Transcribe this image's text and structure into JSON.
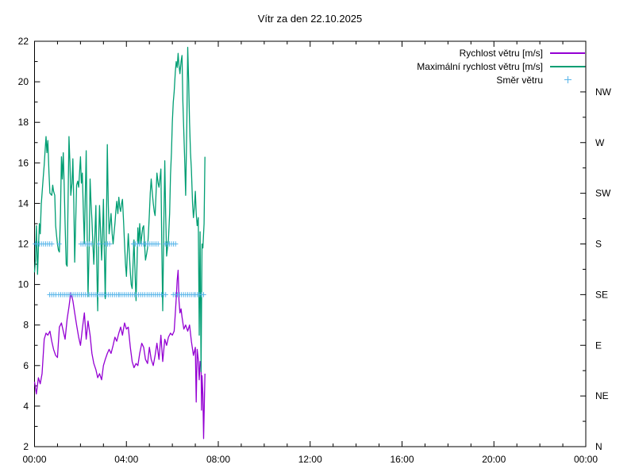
{
  "chart_data": {
    "type": "line",
    "title": "Vítr za den 22.10.2025",
    "background": "#ffffff",
    "axis_color": "#000000",
    "legend_position": "inside-top-right",
    "x_axis": {
      "range_h": [
        0,
        24
      ],
      "label_hours": [
        0,
        4,
        8,
        12,
        16,
        20,
        24
      ],
      "labels": [
        "00:00",
        "04:00",
        "08:00",
        "12:00",
        "16:00",
        "20:00",
        "00:00"
      ],
      "minor_step_h": 1
    },
    "y_axis": {
      "range": [
        2,
        22
      ],
      "major_ticks": [
        2,
        4,
        6,
        8,
        10,
        12,
        14,
        16,
        18,
        20,
        22
      ],
      "labels": [
        "2",
        "4",
        "6",
        "8",
        "10",
        "12",
        "14",
        "16",
        "18",
        "20",
        "22"
      ],
      "minor_step": 1
    },
    "y2_axis": {
      "tick_values": [
        2,
        4.5,
        7,
        9.5,
        12,
        14.5,
        17,
        19.5
      ],
      "labels": [
        "N",
        "NE",
        "E",
        "SE",
        "S",
        "SW",
        "W",
        "NW"
      ],
      "minor_step": 1.25
    },
    "series": [
      {
        "name": "Rychlost větru [m/s]",
        "type": "line",
        "color": "#9400d3",
        "points": [
          [
            0.0,
            5.2
          ],
          [
            0.08,
            4.6
          ],
          [
            0.17,
            5.4
          ],
          [
            0.25,
            5.1
          ],
          [
            0.33,
            5.6
          ],
          [
            0.42,
            7.3
          ],
          [
            0.5,
            7.6
          ],
          [
            0.58,
            7.5
          ],
          [
            0.67,
            7.7
          ],
          [
            0.75,
            7.2
          ],
          [
            0.83,
            6.8
          ],
          [
            0.92,
            6.5
          ],
          [
            1.0,
            6.4
          ],
          [
            1.08,
            7.9
          ],
          [
            1.17,
            8.1
          ],
          [
            1.25,
            7.7
          ],
          [
            1.33,
            7.3
          ],
          [
            1.42,
            8.3
          ],
          [
            1.5,
            8.9
          ],
          [
            1.58,
            9.6
          ],
          [
            1.67,
            9.2
          ],
          [
            1.75,
            8.6
          ],
          [
            1.83,
            8.0
          ],
          [
            1.92,
            7.4
          ],
          [
            2.0,
            7.0
          ],
          [
            2.08,
            7.8
          ],
          [
            2.17,
            8.6
          ],
          [
            2.25,
            7.3
          ],
          [
            2.33,
            8.2
          ],
          [
            2.42,
            7.5
          ],
          [
            2.5,
            6.6
          ],
          [
            2.58,
            6.1
          ],
          [
            2.67,
            5.8
          ],
          [
            2.75,
            5.4
          ],
          [
            2.83,
            5.6
          ],
          [
            2.92,
            5.3
          ],
          [
            3.0,
            6.0
          ],
          [
            3.08,
            6.3
          ],
          [
            3.17,
            6.6
          ],
          [
            3.25,
            6.8
          ],
          [
            3.33,
            6.6
          ],
          [
            3.42,
            7.0
          ],
          [
            3.5,
            7.4
          ],
          [
            3.58,
            7.2
          ],
          [
            3.67,
            7.6
          ],
          [
            3.75,
            7.9
          ],
          [
            3.83,
            7.5
          ],
          [
            3.92,
            8.1
          ],
          [
            4.0,
            7.8
          ],
          [
            4.08,
            7.9
          ],
          [
            4.17,
            6.9
          ],
          [
            4.25,
            6.2
          ],
          [
            4.33,
            5.9
          ],
          [
            4.42,
            6.1
          ],
          [
            4.5,
            6.0
          ],
          [
            4.58,
            6.6
          ],
          [
            4.67,
            7.1
          ],
          [
            4.75,
            6.9
          ],
          [
            4.83,
            6.3
          ],
          [
            4.92,
            6.1
          ],
          [
            5.0,
            6.9
          ],
          [
            5.08,
            6.3
          ],
          [
            5.17,
            6.0
          ],
          [
            5.25,
            6.5
          ],
          [
            5.33,
            7.1
          ],
          [
            5.42,
            6.3
          ],
          [
            5.5,
            7.5
          ],
          [
            5.58,
            6.2
          ],
          [
            5.67,
            7.3
          ],
          [
            5.75,
            7.0
          ],
          [
            5.83,
            7.4
          ],
          [
            5.92,
            7.6
          ],
          [
            6.0,
            7.5
          ],
          [
            6.08,
            7.7
          ],
          [
            6.13,
            8.6
          ],
          [
            6.17,
            9.3
          ],
          [
            6.21,
            10.2
          ],
          [
            6.25,
            10.7
          ],
          [
            6.29,
            9.2
          ],
          [
            6.33,
            8.6
          ],
          [
            6.38,
            8.8
          ],
          [
            6.42,
            8.4
          ],
          [
            6.5,
            7.8
          ],
          [
            6.58,
            8.0
          ],
          [
            6.67,
            7.7
          ],
          [
            6.75,
            8.0
          ],
          [
            6.83,
            7.2
          ],
          [
            6.92,
            6.5
          ],
          [
            7.0,
            6.9
          ],
          [
            7.04,
            4.2
          ],
          [
            7.08,
            6.8
          ],
          [
            7.13,
            6.3
          ],
          [
            7.17,
            5.3
          ],
          [
            7.21,
            6.2
          ],
          [
            7.25,
            6.0
          ],
          [
            7.27,
            3.8
          ],
          [
            7.29,
            5.5
          ],
          [
            7.33,
            4.6
          ],
          [
            7.36,
            2.4
          ],
          [
            7.42,
            5.6
          ]
        ]
      },
      {
        "name": "Maximální rychlost větru [m/s]",
        "type": "line",
        "color": "#009e73",
        "points": [
          [
            0.0,
            10.6
          ],
          [
            0.04,
            11.2
          ],
          [
            0.08,
            12.9
          ],
          [
            0.13,
            10.5
          ],
          [
            0.17,
            11.8
          ],
          [
            0.21,
            13.0
          ],
          [
            0.25,
            12.5
          ],
          [
            0.29,
            13.9
          ],
          [
            0.33,
            14.5
          ],
          [
            0.38,
            15.3
          ],
          [
            0.42,
            15.9
          ],
          [
            0.46,
            16.6
          ],
          [
            0.5,
            17.3
          ],
          [
            0.54,
            16.5
          ],
          [
            0.58,
            17.1
          ],
          [
            0.63,
            15.5
          ],
          [
            0.67,
            14.5
          ],
          [
            0.75,
            14.4
          ],
          [
            0.79,
            14.9
          ],
          [
            0.83,
            14.6
          ],
          [
            0.88,
            14.4
          ],
          [
            0.92,
            12.9
          ],
          [
            0.96,
            12.4
          ],
          [
            1.0,
            12.0
          ],
          [
            1.04,
            11.7
          ],
          [
            1.08,
            11.6
          ],
          [
            1.13,
            13.5
          ],
          [
            1.17,
            16.3
          ],
          [
            1.21,
            15.2
          ],
          [
            1.25,
            16.5
          ],
          [
            1.29,
            15.0
          ],
          [
            1.33,
            13.0
          ],
          [
            1.38,
            11.0
          ],
          [
            1.42,
            10.9
          ],
          [
            1.46,
            14.0
          ],
          [
            1.5,
            17.3
          ],
          [
            1.54,
            16.0
          ],
          [
            1.58,
            14.4
          ],
          [
            1.63,
            15.0
          ],
          [
            1.67,
            16.2
          ],
          [
            1.71,
            14.0
          ],
          [
            1.75,
            11.1
          ],
          [
            1.79,
            13.0
          ],
          [
            1.83,
            14.9
          ],
          [
            1.88,
            15.1
          ],
          [
            1.92,
            14.8
          ],
          [
            1.96,
            15.5
          ],
          [
            2.0,
            16.3
          ],
          [
            2.04,
            15.0
          ],
          [
            2.08,
            15.5
          ],
          [
            2.13,
            13.5
          ],
          [
            2.17,
            12.0
          ],
          [
            2.21,
            14.5
          ],
          [
            2.25,
            16.6
          ],
          [
            2.29,
            12.5
          ],
          [
            2.33,
            9.4
          ],
          [
            2.38,
            12.0
          ],
          [
            2.42,
            15.2
          ],
          [
            2.46,
            14.0
          ],
          [
            2.5,
            13.2
          ],
          [
            2.54,
            12.0
          ],
          [
            2.58,
            11.0
          ],
          [
            2.63,
            12.5
          ],
          [
            2.67,
            13.9
          ],
          [
            2.71,
            11.0
          ],
          [
            2.75,
            8.7
          ],
          [
            2.79,
            12.0
          ],
          [
            2.83,
            13.9
          ],
          [
            2.88,
            12.5
          ],
          [
            2.92,
            11.2
          ],
          [
            2.96,
            12.5
          ],
          [
            3.0,
            14.2
          ],
          [
            3.04,
            11.5
          ],
          [
            3.08,
            9.3
          ],
          [
            3.13,
            13.0
          ],
          [
            3.17,
            16.9
          ],
          [
            3.21,
            14.0
          ],
          [
            3.25,
            12.5
          ],
          [
            3.29,
            13.0
          ],
          [
            3.33,
            13.5
          ],
          [
            3.38,
            12.5
          ],
          [
            3.42,
            12.0
          ],
          [
            3.46,
            12.5
          ],
          [
            3.5,
            13.0
          ],
          [
            3.54,
            13.6
          ],
          [
            3.58,
            14.1
          ],
          [
            3.63,
            13.5
          ],
          [
            3.67,
            14.3
          ],
          [
            3.71,
            13.8
          ],
          [
            3.75,
            13.6
          ],
          [
            3.79,
            14.0
          ],
          [
            3.83,
            14.2
          ],
          [
            3.88,
            13.0
          ],
          [
            3.92,
            12.0
          ],
          [
            3.96,
            11.0
          ],
          [
            4.0,
            10.4
          ],
          [
            4.04,
            11.5
          ],
          [
            4.08,
            12.5
          ],
          [
            4.13,
            11.5
          ],
          [
            4.17,
            10.6
          ],
          [
            4.21,
            10.0
          ],
          [
            4.25,
            9.8
          ],
          [
            4.29,
            11.0
          ],
          [
            4.33,
            12.2
          ],
          [
            4.38,
            10.5
          ],
          [
            4.42,
            9.2
          ],
          [
            4.46,
            11.0
          ],
          [
            4.5,
            12.8
          ],
          [
            4.54,
            12.0
          ],
          [
            4.58,
            13.0
          ],
          [
            4.63,
            12.0
          ],
          [
            4.67,
            12.4
          ],
          [
            4.71,
            12.8
          ],
          [
            4.75,
            12.9
          ],
          [
            4.79,
            12.0
          ],
          [
            4.83,
            11.2
          ],
          [
            4.88,
            11.5
          ],
          [
            4.92,
            11.8
          ],
          [
            4.96,
            12.5
          ],
          [
            5.0,
            13.5
          ],
          [
            5.04,
            14.5
          ],
          [
            5.08,
            15.2
          ],
          [
            5.13,
            14.5
          ],
          [
            5.17,
            14.0
          ],
          [
            5.21,
            13.6
          ],
          [
            5.25,
            13.4
          ],
          [
            5.29,
            14.5
          ],
          [
            5.33,
            15.5
          ],
          [
            5.38,
            15.0
          ],
          [
            5.42,
            14.8
          ],
          [
            5.46,
            15.2
          ],
          [
            5.5,
            15.7
          ],
          [
            5.54,
            12.0
          ],
          [
            5.58,
            8.7
          ],
          [
            5.63,
            13.0
          ],
          [
            5.67,
            16.1
          ],
          [
            5.71,
            13.5
          ],
          [
            5.75,
            11.4
          ],
          [
            5.79,
            11.8
          ],
          [
            5.83,
            12.2
          ],
          [
            5.88,
            13.5
          ],
          [
            5.92,
            15.4
          ],
          [
            5.96,
            16.5
          ],
          [
            6.0,
            18.0
          ],
          [
            6.04,
            19.0
          ],
          [
            6.08,
            19.5
          ],
          [
            6.13,
            20.5
          ],
          [
            6.17,
            21.0
          ],
          [
            6.21,
            20.7
          ],
          [
            6.25,
            21.4
          ],
          [
            6.29,
            20.8
          ],
          [
            6.33,
            20.4
          ],
          [
            6.38,
            21.0
          ],
          [
            6.42,
            21.3
          ],
          [
            6.46,
            19.0
          ],
          [
            6.5,
            17.5
          ],
          [
            6.54,
            16.0
          ],
          [
            6.58,
            14.4
          ],
          [
            6.63,
            18.0
          ],
          [
            6.67,
            21.7
          ],
          [
            6.71,
            20.0
          ],
          [
            6.75,
            18.0
          ],
          [
            6.79,
            16.5
          ],
          [
            6.83,
            15.7
          ],
          [
            6.88,
            14.0
          ],
          [
            6.92,
            13.3
          ],
          [
            6.96,
            13.8
          ],
          [
            7.0,
            14.6
          ],
          [
            7.04,
            13.5
          ],
          [
            7.08,
            12.9
          ],
          [
            7.13,
            13.3
          ],
          [
            7.17,
            7.5
          ],
          [
            7.21,
            12.6
          ],
          [
            7.25,
            5.7
          ],
          [
            7.29,
            12.0
          ],
          [
            7.33,
            11.8
          ],
          [
            7.38,
            13.0
          ],
          [
            7.42,
            16.3
          ]
        ]
      },
      {
        "name": "Směr větru",
        "type": "points",
        "marker": "plus",
        "color": "#56b4e9",
        "step_h": 0.09,
        "value_map": {
          "S": 12,
          "SE": 9.5
        },
        "segments": [
          {
            "dir": "S",
            "from": 0.03,
            "to": 0.81
          },
          {
            "dir": "S",
            "from": 1.07,
            "to": 1.1
          },
          {
            "dir": "S",
            "from": 2.02,
            "to": 2.47
          },
          {
            "dir": "S",
            "from": 2.8,
            "to": 2.84
          },
          {
            "dir": "S",
            "from": 3.09,
            "to": 3.27
          },
          {
            "dir": "S",
            "from": 4.3,
            "to": 5.4
          },
          {
            "dir": "S",
            "from": 5.69,
            "to": 6.17
          },
          {
            "dir": "SE",
            "from": 0.66,
            "to": 1.0
          },
          {
            "dir": "SE",
            "from": 1.05,
            "to": 3.67
          },
          {
            "dir": "SE",
            "from": 3.72,
            "to": 4.8
          },
          {
            "dir": "SE",
            "from": 4.9,
            "to": 5.79
          },
          {
            "dir": "SE",
            "from": 6.04,
            "to": 6.94
          },
          {
            "dir": "SE",
            "from": 7.0,
            "to": 7.41
          }
        ]
      }
    ]
  }
}
